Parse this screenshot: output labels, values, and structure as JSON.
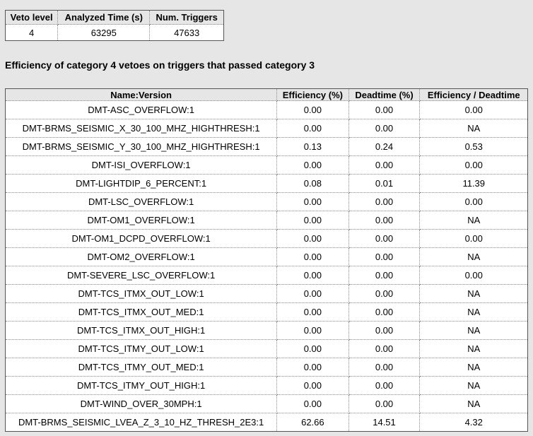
{
  "summary": {
    "headers": [
      "Veto level",
      "Analyzed Time (s)",
      "Num. Triggers"
    ],
    "row": [
      "4",
      "63295",
      "47633"
    ]
  },
  "section_heading": "Efficiency of category 4 vetoes on triggers that passed category 3",
  "veto_table": {
    "headers": [
      "Name:Version",
      "Efficiency (%)",
      "Deadtime (%)",
      "Efficiency / Deadtime"
    ],
    "rows": [
      [
        "DMT-ASC_OVERFLOW:1",
        "0.00",
        "0.00",
        "0.00"
      ],
      [
        "DMT-BRMS_SEISMIC_X_30_100_MHZ_HIGHTHRESH:1",
        "0.00",
        "0.00",
        "NA"
      ],
      [
        "DMT-BRMS_SEISMIC_Y_30_100_MHZ_HIGHTHRESH:1",
        "0.13",
        "0.24",
        "0.53"
      ],
      [
        "DMT-ISI_OVERFLOW:1",
        "0.00",
        "0.00",
        "0.00"
      ],
      [
        "DMT-LIGHTDIP_6_PERCENT:1",
        "0.08",
        "0.01",
        "11.39"
      ],
      [
        "DMT-LSC_OVERFLOW:1",
        "0.00",
        "0.00",
        "0.00"
      ],
      [
        "DMT-OM1_OVERFLOW:1",
        "0.00",
        "0.00",
        "NA"
      ],
      [
        "DMT-OM1_DCPD_OVERFLOW:1",
        "0.00",
        "0.00",
        "0.00"
      ],
      [
        "DMT-OM2_OVERFLOW:1",
        "0.00",
        "0.00",
        "NA"
      ],
      [
        "DMT-SEVERE_LSC_OVERFLOW:1",
        "0.00",
        "0.00",
        "0.00"
      ],
      [
        "DMT-TCS_ITMX_OUT_LOW:1",
        "0.00",
        "0.00",
        "NA"
      ],
      [
        "DMT-TCS_ITMX_OUT_MED:1",
        "0.00",
        "0.00",
        "NA"
      ],
      [
        "DMT-TCS_ITMX_OUT_HIGH:1",
        "0.00",
        "0.00",
        "NA"
      ],
      [
        "DMT-TCS_ITMY_OUT_LOW:1",
        "0.00",
        "0.00",
        "NA"
      ],
      [
        "DMT-TCS_ITMY_OUT_MED:1",
        "0.00",
        "0.00",
        "NA"
      ],
      [
        "DMT-TCS_ITMY_OUT_HIGH:1",
        "0.00",
        "0.00",
        "NA"
      ],
      [
        "DMT-WIND_OVER_30MPH:1",
        "0.00",
        "0.00",
        "NA"
      ],
      [
        "DMT-BRMS_SEISMIC_LVEA_Z_3_10_HZ_THRESH_2E3:1",
        "62.66",
        "14.51",
        "4.32"
      ]
    ]
  },
  "colors": {
    "page_background": "#e6e6e6",
    "cell_background": "#ffffff",
    "border": "#555555"
  }
}
